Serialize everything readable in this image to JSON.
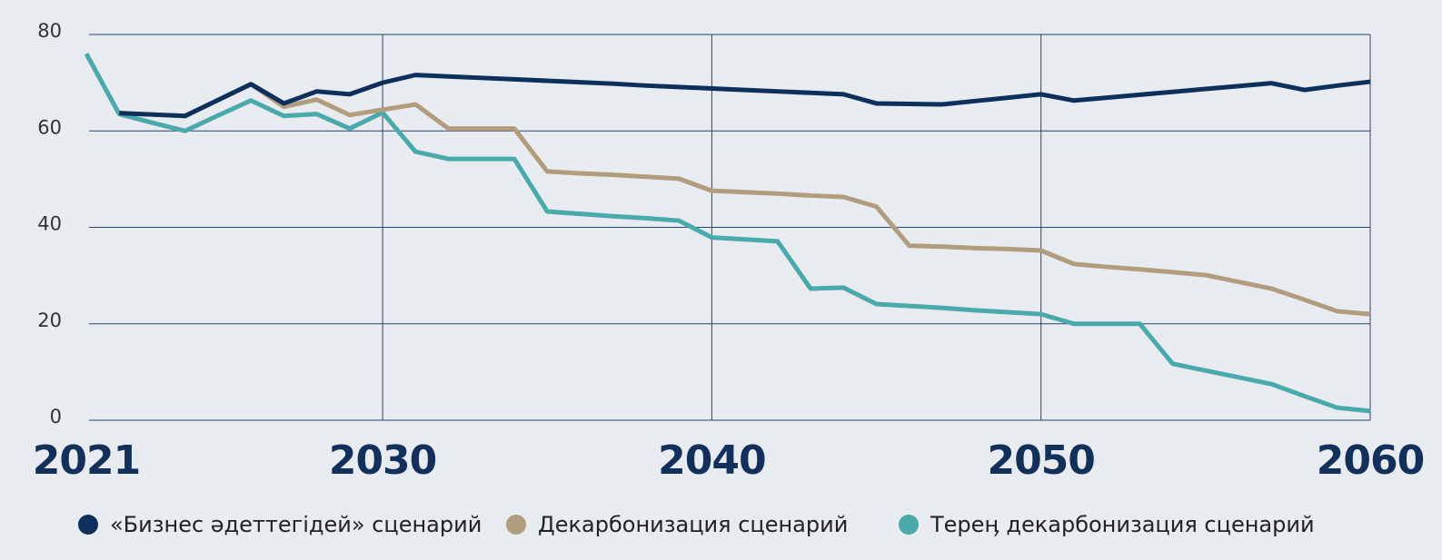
{
  "chart_data": {
    "type": "line",
    "x": [
      2021,
      2022,
      2023,
      2024,
      2025,
      2026,
      2027,
      2028,
      2029,
      2030,
      2031,
      2032,
      2033,
      2034,
      2035,
      2036,
      2037,
      2038,
      2039,
      2040,
      2041,
      2042,
      2043,
      2044,
      2045,
      2046,
      2047,
      2048,
      2049,
      2050,
      2051,
      2052,
      2053,
      2054,
      2055,
      2056,
      2057,
      2058,
      2059,
      2060
    ],
    "series": [
      {
        "name": "«Бизнес әдеттегідей» сценарий",
        "color": "#0d2f5c",
        "values": [
          null,
          63.7,
          63.4,
          63.1,
          66.4,
          69.7,
          65.7,
          68.2,
          67.6,
          70,
          71.6,
          71.3,
          71,
          70.7,
          70.4,
          70.1,
          69.8,
          69.4,
          69.1,
          68.8,
          68.5,
          68.2,
          67.9,
          67.6,
          65.7,
          65.6,
          65.5,
          66.2,
          66.9,
          67.6,
          66.3,
          66.9,
          67.5,
          68.1,
          68.7,
          69.3,
          69.9,
          68.5,
          69.4,
          70.2
        ]
      },
      {
        "name": "Декарбонизация сценарий",
        "color": "#b29c7e",
        "values": [
          null,
          63.7,
          63.4,
          63.1,
          66.4,
          69.7,
          65,
          66.5,
          63.3,
          64.4,
          65.5,
          60.5,
          60.5,
          60.5,
          51.6,
          51.2,
          50.9,
          50.5,
          50.1,
          47.6,
          47.3,
          47,
          46.6,
          46.3,
          44.3,
          36.2,
          36,
          35.7,
          35.5,
          35.2,
          32.4,
          31.8,
          31.3,
          30.7,
          30.1,
          28.7,
          27.3,
          25,
          22.6,
          22
        ]
      },
      {
        "name": "Тереӊ декарбонизация сценарий",
        "color": "#4aa9ab",
        "values": [
          76,
          63.5,
          61.7,
          60,
          63.2,
          66.3,
          63.1,
          63.5,
          60.5,
          63.8,
          55.7,
          54.2,
          54.2,
          54.2,
          43.3,
          42.8,
          42.3,
          41.9,
          41.4,
          37.9,
          37.5,
          37.1,
          27.3,
          27.5,
          24.1,
          23.7,
          23.3,
          22.8,
          22.4,
          22,
          20,
          20,
          20,
          11.7,
          10.3,
          8.9,
          7.5,
          5,
          2.6,
          1.9
        ]
      }
    ],
    "xlim": [
      2021,
      2060
    ],
    "xticks": [
      2021,
      2030,
      2040,
      2050,
      2060
    ],
    "ylim": [
      0,
      80
    ],
    "yticks": [
      0,
      20,
      40,
      60,
      80
    ],
    "grid": true
  }
}
